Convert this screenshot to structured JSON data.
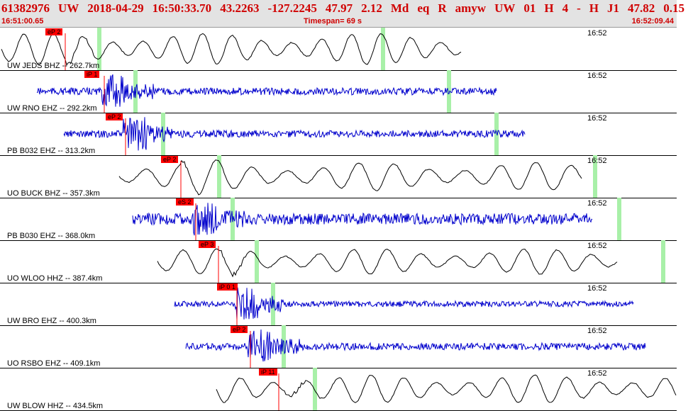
{
  "header": {
    "title_parts": [
      "61382976",
      "UW",
      "2018-04-29",
      "16:50:33.70",
      "43.2263",
      "-127.2245",
      "47.97",
      "2.12",
      "Md",
      "eq",
      "R",
      "amyw",
      "UW",
      "01",
      "H",
      "4",
      "-",
      "H",
      "J1",
      "47.82",
      "0.15"
    ],
    "time_start": "16:51:00.65",
    "timespan": "Timespan=  69 s",
    "time_end": "16:52:09.44"
  },
  "colors": {
    "pick": "#ff0000",
    "window": "#a8f0a8",
    "blue": "#0000cc",
    "black": "#000000",
    "header_text": "#d00000"
  },
  "traces": [
    {
      "label": "UW JEDS BHZ -- 262.7km",
      "pick": "eP 2",
      "time_tick": "16:52",
      "color": "black",
      "style": "smooth"
    },
    {
      "label": "UW RNO EHZ -- 292.2km",
      "pick": "iP 1",
      "time_tick": "16:52",
      "color": "blue",
      "style": "noise"
    },
    {
      "label": "PB B032 EHZ -- 313.2km",
      "pick": "eP 2",
      "time_tick": "16:52",
      "color": "blue",
      "style": "noise"
    },
    {
      "label": "UO BUCK BHZ -- 357.3km",
      "pick": "eP 2",
      "time_tick": "16:52",
      "color": "black",
      "style": "smooth"
    },
    {
      "label": "PB B030 EHZ -- 368.0km",
      "pick": "eS 2",
      "time_tick": "16:52",
      "color": "blue",
      "style": "noise"
    },
    {
      "label": "UO WLOO HHZ -- 387.4km",
      "pick": "eP 3",
      "time_tick": "16:52",
      "color": "black",
      "style": "smooth"
    },
    {
      "label": "UW BRO EHZ -- 400.3km",
      "pick": "iP 0 1",
      "time_tick": "16:52",
      "color": "blue",
      "style": "noise"
    },
    {
      "label": "UO RSBO EHZ -- 409.1km",
      "pick": "eP 2",
      "time_tick": "16:52",
      "color": "blue",
      "style": "noise"
    },
    {
      "label": "UW BLOW HHZ -- 434.5km",
      "pick": "iP 11",
      "time_tick": "16:52",
      "color": "black",
      "style": "smooth"
    }
  ]
}
